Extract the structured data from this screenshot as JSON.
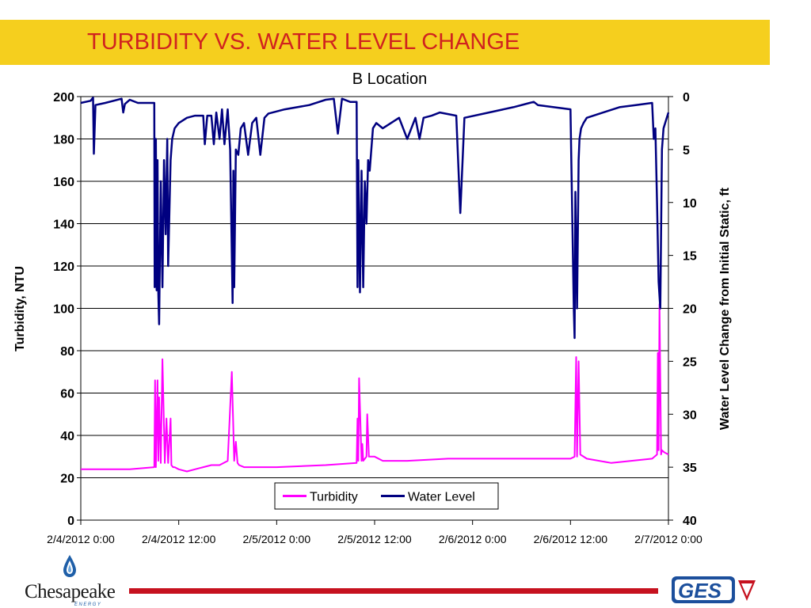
{
  "slide": {
    "title": "TURBIDITY VS. WATER LEVEL CHANGE"
  },
  "logos": {
    "left": {
      "name": "Chesapeake",
      "sub": "ENERGY",
      "icon": "water-drop-icon"
    },
    "right": {
      "name": "GES",
      "icon": "ges-logo-icon"
    }
  },
  "colors": {
    "title_bar": "#f5cf1e",
    "title_text": "#d0231f",
    "footer_line": "#c6121f",
    "turbidity": "#ff00ff",
    "water_level": "#000080"
  },
  "chart_data": {
    "type": "line",
    "title": "B Location",
    "ylabel": "Turbidity, NTU",
    "y2label": "Water Level Change from Initial Static, ft",
    "ylim": [
      0,
      200
    ],
    "y2lim": [
      0,
      40
    ],
    "y2_reversed": true,
    "yticks": [
      0,
      20,
      40,
      60,
      80,
      100,
      120,
      140,
      160,
      180,
      200
    ],
    "y2ticks": [
      0,
      5,
      10,
      15,
      20,
      25,
      30,
      35,
      40
    ],
    "xticks": [
      "2/4/2012 0:00",
      "2/4/2012 12:00",
      "2/5/2012 0:00",
      "2/5/2012 12:00",
      "2/6/2012 0:00",
      "2/6/2012 12:00",
      "2/7/2012 0:00"
    ],
    "xlim_hours": [
      0,
      72
    ],
    "grid": "horizontal",
    "legend": {
      "placement": "bottom-center",
      "entries": [
        "Turbidity",
        "Water Level"
      ]
    },
    "series": [
      {
        "name": "Turbidity",
        "axis": "left",
        "color": "#ff00ff",
        "x_hours": [
          0,
          3,
          6,
          9,
          9.1,
          9.2,
          9.4,
          9.5,
          9.6,
          9.8,
          10.0,
          10.3,
          10.5,
          10.7,
          11.0,
          11.1,
          11.3,
          11.5,
          12,
          13,
          15,
          16,
          17,
          18,
          18.5,
          18.8,
          19.0,
          19.2,
          19.4,
          20,
          24,
          30,
          33.8,
          33.9,
          34.0,
          34.1,
          34.4,
          34.5,
          34.6,
          35.0,
          35.1,
          35.3,
          35.5,
          36,
          37,
          40,
          45,
          50,
          55,
          60,
          60.5,
          60.7,
          60.8,
          61.0,
          61.2,
          62,
          65,
          70,
          70.6,
          70.7,
          70.8,
          70.9,
          71.1,
          71.2,
          71.5,
          72
        ],
        "values": [
          24,
          24,
          24,
          25,
          66,
          25,
          66,
          28,
          58,
          27,
          76,
          27,
          48,
          27,
          48,
          26,
          25,
          25,
          24,
          23,
          25,
          26,
          26,
          28,
          70,
          28,
          37,
          27,
          26,
          25,
          25,
          26,
          27,
          48,
          28,
          67,
          28,
          36,
          28,
          30,
          50,
          30,
          30,
          30,
          28,
          28,
          29,
          29,
          29,
          29,
          30,
          77,
          30,
          75,
          31,
          29,
          27,
          29,
          31,
          79,
          33,
          102,
          31,
          33,
          32,
          31
        ]
      },
      {
        "name": "Water Level",
        "axis": "right",
        "color": "#000080",
        "x_hours": [
          0,
          1.2,
          1.5,
          1.6,
          1.8,
          3,
          5,
          5.2,
          5.4,
          6,
          7,
          9,
          9.05,
          9.2,
          9.3,
          9.4,
          9.5,
          9.6,
          9.8,
          10.0,
          10.2,
          10.4,
          10.6,
          10.7,
          11.0,
          11.2,
          11.5,
          12,
          13,
          14,
          15,
          15.2,
          15.5,
          16,
          16.3,
          16.6,
          17,
          17.3,
          17.6,
          18,
          18.3,
          18.6,
          18.7,
          18.8,
          19.0,
          19.3,
          19.6,
          20,
          20.5,
          21,
          21.5,
          22,
          22.5,
          23,
          25,
          28,
          30,
          31,
          31.5,
          32,
          33,
          33.8,
          33.9,
          34.0,
          34.2,
          34.4,
          34.6,
          34.8,
          35.0,
          35.2,
          35.4,
          35.8,
          36.2,
          37,
          38,
          39,
          40,
          41,
          41.5,
          42,
          43,
          44,
          46,
          46.5,
          47,
          50,
          53,
          55,
          55.5,
          56,
          60,
          60.4,
          60.5,
          60.6,
          60.8,
          61.0,
          61.1,
          61.3,
          61.6,
          62,
          64,
          66,
          68,
          70,
          70.2,
          70.4,
          70.6,
          70.8,
          71.0,
          71.2,
          71.4,
          71.8,
          72
        ],
        "values": [
          0.6,
          0.4,
          0.1,
          5.4,
          0.8,
          0.6,
          0.2,
          1.5,
          0.7,
          0.3,
          0.6,
          0.6,
          18,
          4,
          18.3,
          6,
          18.5,
          21.5,
          8,
          18,
          6,
          13,
          4,
          16,
          6,
          4,
          3,
          2.5,
          2,
          1.8,
          1.8,
          4.5,
          1.8,
          1.8,
          4.5,
          1.5,
          4,
          1.2,
          4.5,
          1.2,
          5,
          19.5,
          7,
          18,
          5,
          5.5,
          3,
          2.5,
          5.5,
          2.5,
          2,
          5.5,
          2,
          1.6,
          1.2,
          0.8,
          0.3,
          0.2,
          3.5,
          0.2,
          0.5,
          0.5,
          18,
          6,
          18.5,
          7,
          18,
          8,
          12,
          6,
          7,
          3,
          2.5,
          3,
          2.5,
          2,
          4,
          2,
          4,
          2,
          1.8,
          1.5,
          1.8,
          11,
          2,
          1.5,
          1.0,
          0.6,
          0.5,
          0.8,
          1.2,
          20,
          22.8,
          9,
          20,
          6,
          4,
          3,
          2.5,
          2.0,
          1.5,
          1.0,
          0.8,
          0.6,
          4,
          3,
          10,
          17.5,
          20,
          5,
          3,
          2,
          1.5
        ]
      }
    ]
  }
}
